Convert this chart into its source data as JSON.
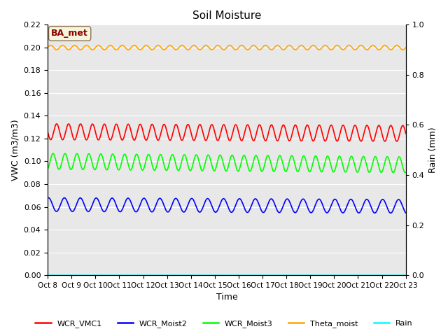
{
  "title": "Soil Moisture",
  "xlabel": "Time",
  "ylabel_left": "VWC (m3/m3)",
  "ylabel_right": "Rain (mm)",
  "ylim_left": [
    0,
    0.22
  ],
  "ylim_right": [
    0.0,
    1.0
  ],
  "background_color": "#e8e8e8",
  "annotation_text": "BA_met",
  "annotation_color": "#8b0000",
  "annotation_bg": "#f5f5dc",
  "annotation_edge": "#8b7355",
  "x_tick_labels": [
    "Oct 8",
    "Oct 9",
    "Oct 10",
    "Oct 11",
    "Oct 12",
    "Oct 13",
    "Oct 14",
    "Oct 15",
    "Oct 16",
    "Oct 17",
    "Oct 18",
    "Oct 19",
    "Oct 20",
    "Oct 21",
    "Oct 22",
    "Oct 23"
  ],
  "series": {
    "WCR_VMC1": {
      "color": "red",
      "base": 0.126,
      "amp": 0.007,
      "freq": 2.0,
      "phase": 0.5,
      "trend": -0.0001
    },
    "WCR_Moist2": {
      "color": "blue",
      "base": 0.062,
      "amp": 0.006,
      "freq": 1.5,
      "phase": 0.2,
      "trend": -0.0001
    },
    "WCR_Moist3": {
      "color": "lime",
      "base": 0.1,
      "amp": 0.007,
      "freq": 2.0,
      "phase": 0.8,
      "trend": -0.0002
    },
    "Theta_moist": {
      "color": "orange",
      "base": 0.2,
      "amp": 0.002,
      "freq": 2.0,
      "phase": 0.0,
      "trend": 0.0
    },
    "Rain": {
      "color": "cyan",
      "base": 0.0,
      "amp": 0.0,
      "freq": 1.0,
      "phase": 0.0,
      "trend": 0.0
    }
  },
  "legend_labels": [
    "WCR_VMC1",
    "WCR_Moist2",
    "WCR_Moist3",
    "Theta_moist",
    "Rain"
  ],
  "legend_colors": [
    "red",
    "blue",
    "lime",
    "orange",
    "cyan"
  ],
  "yticks_left": [
    0.0,
    0.02,
    0.04,
    0.06,
    0.08,
    0.1,
    0.12,
    0.14,
    0.16,
    0.18,
    0.2,
    0.22
  ],
  "yticks_right": [
    0.0,
    0.2,
    0.4,
    0.6,
    0.8,
    1.0
  ]
}
